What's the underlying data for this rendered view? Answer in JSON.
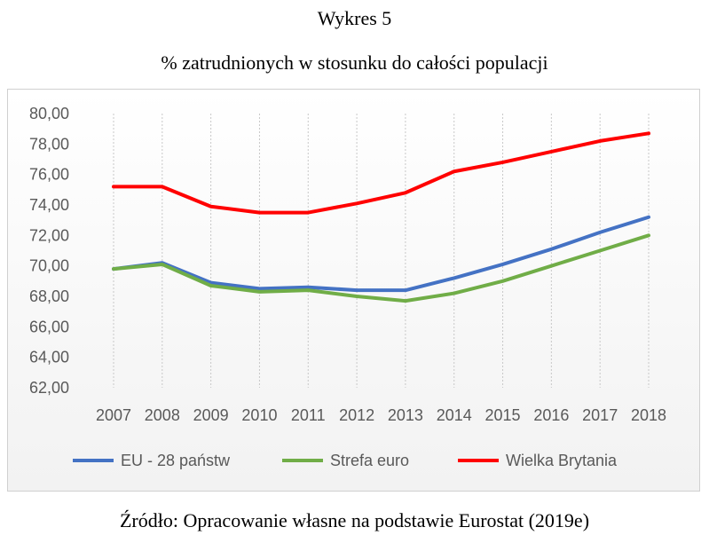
{
  "title": "Wykres 5",
  "subtitle": "% zatrudnionych w stosunku do całości populacji",
  "source": "Źródło: Opracowanie własne na podstawie Eurostat (2019e)",
  "chart_data": {
    "type": "line",
    "title": "% zatrudnionych w stosunku do całości populacji",
    "xlabel": "",
    "ylabel": "",
    "x": [
      "2007",
      "2008",
      "2009",
      "2010",
      "2011",
      "2012",
      "2013",
      "2014",
      "2015",
      "2016",
      "2017",
      "2018"
    ],
    "ylim": [
      62,
      80
    ],
    "yticks": [
      "62,00",
      "64,00",
      "66,00",
      "68,00",
      "70,00",
      "72,00",
      "74,00",
      "76,00",
      "78,00",
      "80,00"
    ],
    "grid": "vertical dashed",
    "legend": "bottom",
    "series": [
      {
        "name": "EU - 28 państw",
        "color": "#4472C4",
        "values": [
          69.8,
          70.2,
          68.9,
          68.5,
          68.6,
          68.4,
          68.4,
          69.2,
          70.1,
          71.1,
          72.2,
          73.2
        ]
      },
      {
        "name": "Strefa euro",
        "color": "#70AD47",
        "values": [
          69.8,
          70.1,
          68.7,
          68.3,
          68.4,
          68.0,
          67.7,
          68.2,
          69.0,
          70.0,
          71.0,
          72.0
        ]
      },
      {
        "name": "Wielka Brytania",
        "color": "#FF0000",
        "values": [
          75.2,
          75.2,
          73.9,
          73.5,
          73.5,
          74.1,
          74.8,
          76.2,
          76.8,
          77.5,
          78.2,
          78.7
        ]
      }
    ]
  }
}
